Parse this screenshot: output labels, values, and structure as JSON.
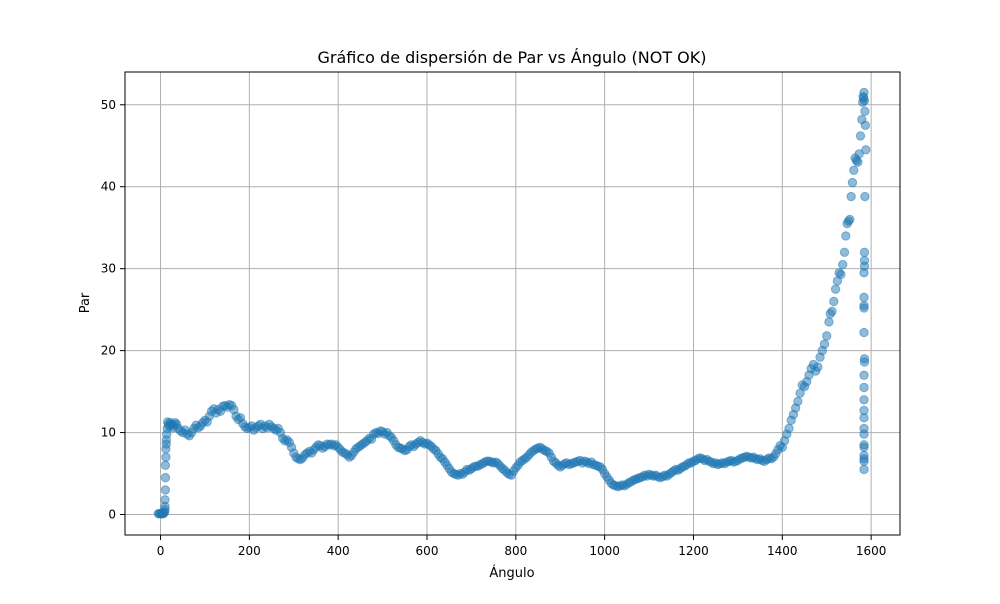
{
  "chart_data": {
    "type": "scatter",
    "title": "Gráfico de dispersión de Par vs Ángulo (NOT OK)",
    "xlabel": "Ángulo",
    "ylabel": "Par",
    "xlim": [
      -80,
      1665
    ],
    "ylim": [
      -2.5,
      54
    ],
    "xticks": [
      0,
      200,
      400,
      600,
      800,
      1000,
      1200,
      1400,
      1600
    ],
    "yticks": [
      0,
      10,
      20,
      30,
      40,
      50
    ],
    "grid": true,
    "marker_color": "#1f77b4",
    "marker_alpha": 0.5,
    "points": [
      [
        -5,
        0.1
      ],
      [
        -3,
        0.1
      ],
      [
        0,
        0.1
      ],
      [
        2,
        0.1
      ],
      [
        4,
        0.1
      ],
      [
        6,
        0.1
      ],
      [
        8,
        0.2
      ],
      [
        9,
        0.3
      ],
      [
        10,
        0.6
      ],
      [
        10,
        1.0
      ],
      [
        10,
        1.8
      ],
      [
        11,
        3.0
      ],
      [
        11,
        4.5
      ],
      [
        11,
        6.0
      ],
      [
        12,
        7.0
      ],
      [
        12,
        8.0
      ],
      [
        13,
        8.6
      ],
      [
        13,
        9.1
      ],
      [
        14,
        9.8
      ],
      [
        15,
        10.5
      ],
      [
        16,
        11.3
      ],
      [
        18,
        11.0
      ],
      [
        20,
        10.8
      ],
      [
        22,
        11.2
      ],
      [
        25,
        11.0
      ],
      [
        28,
        10.6
      ],
      [
        30,
        10.9
      ],
      [
        33,
        11.2
      ],
      [
        36,
        11.0
      ],
      [
        40,
        10.5
      ],
      [
        45,
        10.2
      ],
      [
        50,
        10.0
      ],
      [
        55,
        10.3
      ],
      [
        60,
        9.8
      ],
      [
        65,
        9.6
      ],
      [
        70,
        10.0
      ],
      [
        75,
        10.5
      ],
      [
        80,
        10.9
      ],
      [
        85,
        10.6
      ],
      [
        90,
        10.8
      ],
      [
        95,
        11.2
      ],
      [
        100,
        11.5
      ],
      [
        105,
        11.3
      ],
      [
        110,
        12.0
      ],
      [
        115,
        12.6
      ],
      [
        120,
        12.9
      ],
      [
        125,
        12.4
      ],
      [
        130,
        12.8
      ],
      [
        135,
        12.6
      ],
      [
        140,
        13.2
      ],
      [
        145,
        13.3
      ],
      [
        150,
        13.1
      ],
      [
        155,
        13.4
      ],
      [
        160,
        13.3
      ],
      [
        165,
        12.8
      ],
      [
        170,
        12.0
      ],
      [
        175,
        11.6
      ],
      [
        180,
        11.8
      ],
      [
        185,
        11.1
      ],
      [
        190,
        10.7
      ],
      [
        195,
        10.5
      ],
      [
        200,
        10.6
      ],
      [
        205,
        10.8
      ],
      [
        210,
        10.3
      ],
      [
        215,
        10.6
      ],
      [
        220,
        10.8
      ],
      [
        225,
        11.0
      ],
      [
        230,
        10.5
      ],
      [
        235,
        10.8
      ],
      [
        240,
        10.6
      ],
      [
        245,
        11.0
      ],
      [
        250,
        10.7
      ],
      [
        255,
        10.5
      ],
      [
        260,
        10.3
      ],
      [
        265,
        10.5
      ],
      [
        270,
        10.0
      ],
      [
        275,
        9.3
      ],
      [
        280,
        9.0
      ],
      [
        285,
        9.1
      ],
      [
        290,
        8.8
      ],
      [
        295,
        8.2
      ],
      [
        300,
        7.5
      ],
      [
        305,
        7.0
      ],
      [
        310,
        6.8
      ],
      [
        315,
        6.7
      ],
      [
        320,
        6.9
      ],
      [
        325,
        7.3
      ],
      [
        330,
        7.5
      ],
      [
        335,
        7.7
      ],
      [
        340,
        7.5
      ],
      [
        345,
        7.9
      ],
      [
        350,
        8.2
      ],
      [
        355,
        8.5
      ],
      [
        360,
        8.4
      ],
      [
        365,
        8.1
      ],
      [
        370,
        8.3
      ],
      [
        375,
        8.6
      ],
      [
        380,
        8.5
      ],
      [
        385,
        8.6
      ],
      [
        390,
        8.4
      ],
      [
        395,
        8.5
      ],
      [
        400,
        8.2
      ],
      [
        405,
        7.9
      ],
      [
        410,
        7.6
      ],
      [
        415,
        7.5
      ],
      [
        420,
        7.3
      ],
      [
        425,
        7.0
      ],
      [
        430,
        7.2
      ],
      [
        435,
        7.6
      ],
      [
        440,
        8.0
      ],
      [
        445,
        8.2
      ],
      [
        450,
        8.4
      ],
      [
        455,
        8.6
      ],
      [
        460,
        8.8
      ],
      [
        465,
        9.0
      ],
      [
        470,
        9.3
      ],
      [
        475,
        9.2
      ],
      [
        480,
        9.8
      ],
      [
        485,
        10.0
      ],
      [
        490,
        9.9
      ],
      [
        495,
        10.2
      ],
      [
        500,
        10.1
      ],
      [
        505,
        9.8
      ],
      [
        510,
        10.0
      ],
      [
        515,
        9.6
      ],
      [
        520,
        9.4
      ],
      [
        525,
        9.0
      ],
      [
        530,
        8.5
      ],
      [
        535,
        8.2
      ],
      [
        540,
        8.1
      ],
      [
        545,
        8.0
      ],
      [
        550,
        7.8
      ],
      [
        555,
        7.9
      ],
      [
        560,
        8.3
      ],
      [
        565,
        8.5
      ],
      [
        570,
        8.3
      ],
      [
        575,
        8.6
      ],
      [
        580,
        8.8
      ],
      [
        585,
        9.0
      ],
      [
        590,
        8.8
      ],
      [
        595,
        8.6
      ],
      [
        600,
        8.7
      ],
      [
        605,
        8.5
      ],
      [
        610,
        8.3
      ],
      [
        615,
        8.0
      ],
      [
        620,
        7.8
      ],
      [
        625,
        7.4
      ],
      [
        630,
        7.0
      ],
      [
        635,
        6.8
      ],
      [
        640,
        6.4
      ],
      [
        645,
        6.0
      ],
      [
        650,
        5.6
      ],
      [
        655,
        5.2
      ],
      [
        660,
        5.0
      ],
      [
        665,
        4.9
      ],
      [
        670,
        4.8
      ],
      [
        675,
        5.0
      ],
      [
        680,
        4.9
      ],
      [
        685,
        5.2
      ],
      [
        690,
        5.5
      ],
      [
        695,
        5.4
      ],
      [
        700,
        5.6
      ],
      [
        705,
        5.8
      ],
      [
        710,
        5.9
      ],
      [
        715,
        5.9
      ],
      [
        720,
        6.1
      ],
      [
        725,
        6.2
      ],
      [
        730,
        6.4
      ],
      [
        735,
        6.5
      ],
      [
        740,
        6.5
      ],
      [
        745,
        6.4
      ],
      [
        750,
        6.3
      ],
      [
        755,
        6.4
      ],
      [
        760,
        6.2
      ],
      [
        765,
        5.9
      ],
      [
        770,
        5.6
      ],
      [
        775,
        5.4
      ],
      [
        780,
        5.1
      ],
      [
        785,
        4.9
      ],
      [
        790,
        4.8
      ],
      [
        795,
        5.3
      ],
      [
        800,
        5.7
      ],
      [
        805,
        6.0
      ],
      [
        810,
        6.4
      ],
      [
        815,
        6.6
      ],
      [
        820,
        6.8
      ],
      [
        825,
        7.0
      ],
      [
        830,
        7.3
      ],
      [
        835,
        7.6
      ],
      [
        840,
        7.8
      ],
      [
        845,
        8.0
      ],
      [
        850,
        8.1
      ],
      [
        855,
        8.2
      ],
      [
        860,
        8.0
      ],
      [
        865,
        7.8
      ],
      [
        870,
        7.7
      ],
      [
        875,
        7.5
      ],
      [
        880,
        7.0
      ],
      [
        885,
        6.5
      ],
      [
        890,
        6.3
      ],
      [
        895,
        6.0
      ],
      [
        900,
        5.8
      ],
      [
        905,
        6.0
      ],
      [
        910,
        6.2
      ],
      [
        915,
        6.3
      ],
      [
        920,
        6.1
      ],
      [
        925,
        6.2
      ],
      [
        930,
        6.3
      ],
      [
        935,
        6.4
      ],
      [
        940,
        6.5
      ],
      [
        945,
        6.6
      ],
      [
        950,
        6.3
      ],
      [
        955,
        6.5
      ],
      [
        960,
        6.4
      ],
      [
        965,
        6.2
      ],
      [
        970,
        6.4
      ],
      [
        975,
        6.1
      ],
      [
        980,
        6.0
      ],
      [
        985,
        5.9
      ],
      [
        990,
        5.8
      ],
      [
        995,
        5.5
      ],
      [
        1000,
        5.0
      ],
      [
        1005,
        4.6
      ],
      [
        1010,
        4.2
      ],
      [
        1015,
        3.8
      ],
      [
        1020,
        3.6
      ],
      [
        1025,
        3.5
      ],
      [
        1030,
        3.4
      ],
      [
        1035,
        3.5
      ],
      [
        1040,
        3.6
      ],
      [
        1045,
        3.5
      ],
      [
        1050,
        3.7
      ],
      [
        1055,
        3.9
      ],
      [
        1060,
        4.0
      ],
      [
        1065,
        4.2
      ],
      [
        1070,
        4.3
      ],
      [
        1075,
        4.4
      ],
      [
        1080,
        4.5
      ],
      [
        1085,
        4.6
      ],
      [
        1090,
        4.8
      ],
      [
        1095,
        4.7
      ],
      [
        1100,
        4.9
      ],
      [
        1105,
        4.8
      ],
      [
        1110,
        4.7
      ],
      [
        1115,
        4.8
      ],
      [
        1120,
        4.6
      ],
      [
        1125,
        4.5
      ],
      [
        1130,
        4.6
      ],
      [
        1135,
        4.8
      ],
      [
        1140,
        4.7
      ],
      [
        1145,
        4.9
      ],
      [
        1150,
        5.1
      ],
      [
        1155,
        5.3
      ],
      [
        1160,
        5.5
      ],
      [
        1165,
        5.4
      ],
      [
        1170,
        5.6
      ],
      [
        1175,
        5.8
      ],
      [
        1180,
        5.9
      ],
      [
        1185,
        6.1
      ],
      [
        1190,
        6.3
      ],
      [
        1195,
        6.3
      ],
      [
        1200,
        6.5
      ],
      [
        1205,
        6.6
      ],
      [
        1210,
        6.8
      ],
      [
        1215,
        6.9
      ],
      [
        1220,
        6.8
      ],
      [
        1225,
        6.6
      ],
      [
        1230,
        6.7
      ],
      [
        1235,
        6.5
      ],
      [
        1240,
        6.4
      ],
      [
        1245,
        6.2
      ],
      [
        1250,
        6.3
      ],
      [
        1255,
        6.1
      ],
      [
        1260,
        6.2
      ],
      [
        1265,
        6.3
      ],
      [
        1270,
        6.2
      ],
      [
        1275,
        6.4
      ],
      [
        1280,
        6.5
      ],
      [
        1285,
        6.6
      ],
      [
        1290,
        6.4
      ],
      [
        1295,
        6.5
      ],
      [
        1300,
        6.6
      ],
      [
        1305,
        6.8
      ],
      [
        1310,
        6.9
      ],
      [
        1315,
        7.0
      ],
      [
        1320,
        7.1
      ],
      [
        1325,
        7.0
      ],
      [
        1330,
        6.9
      ],
      [
        1335,
        7.0
      ],
      [
        1340,
        6.8
      ],
      [
        1345,
        6.7
      ],
      [
        1350,
        6.8
      ],
      [
        1355,
        6.6
      ],
      [
        1360,
        6.5
      ],
      [
        1365,
        6.7
      ],
      [
        1370,
        6.9
      ],
      [
        1375,
        6.8
      ],
      [
        1380,
        7.0
      ],
      [
        1385,
        7.4
      ],
      [
        1390,
        7.9
      ],
      [
        1395,
        8.4
      ],
      [
        1400,
        8.2
      ],
      [
        1405,
        9.0
      ],
      [
        1410,
        9.8
      ],
      [
        1415,
        10.5
      ],
      [
        1420,
        11.5
      ],
      [
        1425,
        12.2
      ],
      [
        1430,
        13.0
      ],
      [
        1435,
        13.8
      ],
      [
        1440,
        14.8
      ],
      [
        1445,
        15.8
      ],
      [
        1450,
        15.6
      ],
      [
        1455,
        16.2
      ],
      [
        1460,
        17.0
      ],
      [
        1465,
        17.8
      ],
      [
        1470,
        18.3
      ],
      [
        1475,
        17.5
      ],
      [
        1480,
        18.0
      ],
      [
        1485,
        19.2
      ],
      [
        1490,
        20.0
      ],
      [
        1495,
        20.8
      ],
      [
        1500,
        21.8
      ],
      [
        1505,
        23.5
      ],
      [
        1508,
        24.5
      ],
      [
        1512,
        24.8
      ],
      [
        1516,
        26.0
      ],
      [
        1520,
        27.5
      ],
      [
        1524,
        28.5
      ],
      [
        1528,
        29.5
      ],
      [
        1532,
        29.3
      ],
      [
        1536,
        30.5
      ],
      [
        1540,
        32.0
      ],
      [
        1543,
        34.0
      ],
      [
        1546,
        35.5
      ],
      [
        1549,
        35.8
      ],
      [
        1552,
        36.0
      ],
      [
        1555,
        38.8
      ],
      [
        1558,
        40.5
      ],
      [
        1561,
        42.0
      ],
      [
        1564,
        43.5
      ],
      [
        1567,
        43.2
      ],
      [
        1570,
        43.0
      ],
      [
        1573,
        44.0
      ],
      [
        1576,
        46.2
      ],
      [
        1579,
        48.2
      ],
      [
        1581,
        50.3
      ],
      [
        1582,
        51.0
      ],
      [
        1583,
        50.8
      ],
      [
        1584,
        51.5
      ],
      [
        1585,
        50.5
      ],
      [
        1586,
        49.2
      ],
      [
        1587,
        47.5
      ],
      [
        1588,
        44.5
      ],
      [
        1586,
        38.8
      ],
      [
        1585,
        32.0
      ],
      [
        1585,
        31.0
      ],
      [
        1585,
        30.3
      ],
      [
        1584,
        29.5
      ],
      [
        1584,
        26.5
      ],
      [
        1584,
        25.5
      ],
      [
        1584,
        25.2
      ],
      [
        1584,
        22.2
      ],
      [
        1585,
        19.0
      ],
      [
        1585,
        18.6
      ],
      [
        1584,
        17.0
      ],
      [
        1584,
        15.5
      ],
      [
        1584,
        14.0
      ],
      [
        1584,
        12.7
      ],
      [
        1584,
        11.8
      ],
      [
        1584,
        10.5
      ],
      [
        1584,
        9.8
      ],
      [
        1584,
        8.5
      ],
      [
        1584,
        8.2
      ],
      [
        1584,
        7.2
      ],
      [
        1584,
        6.8
      ],
      [
        1584,
        6.5
      ],
      [
        1584,
        5.5
      ]
    ]
  }
}
